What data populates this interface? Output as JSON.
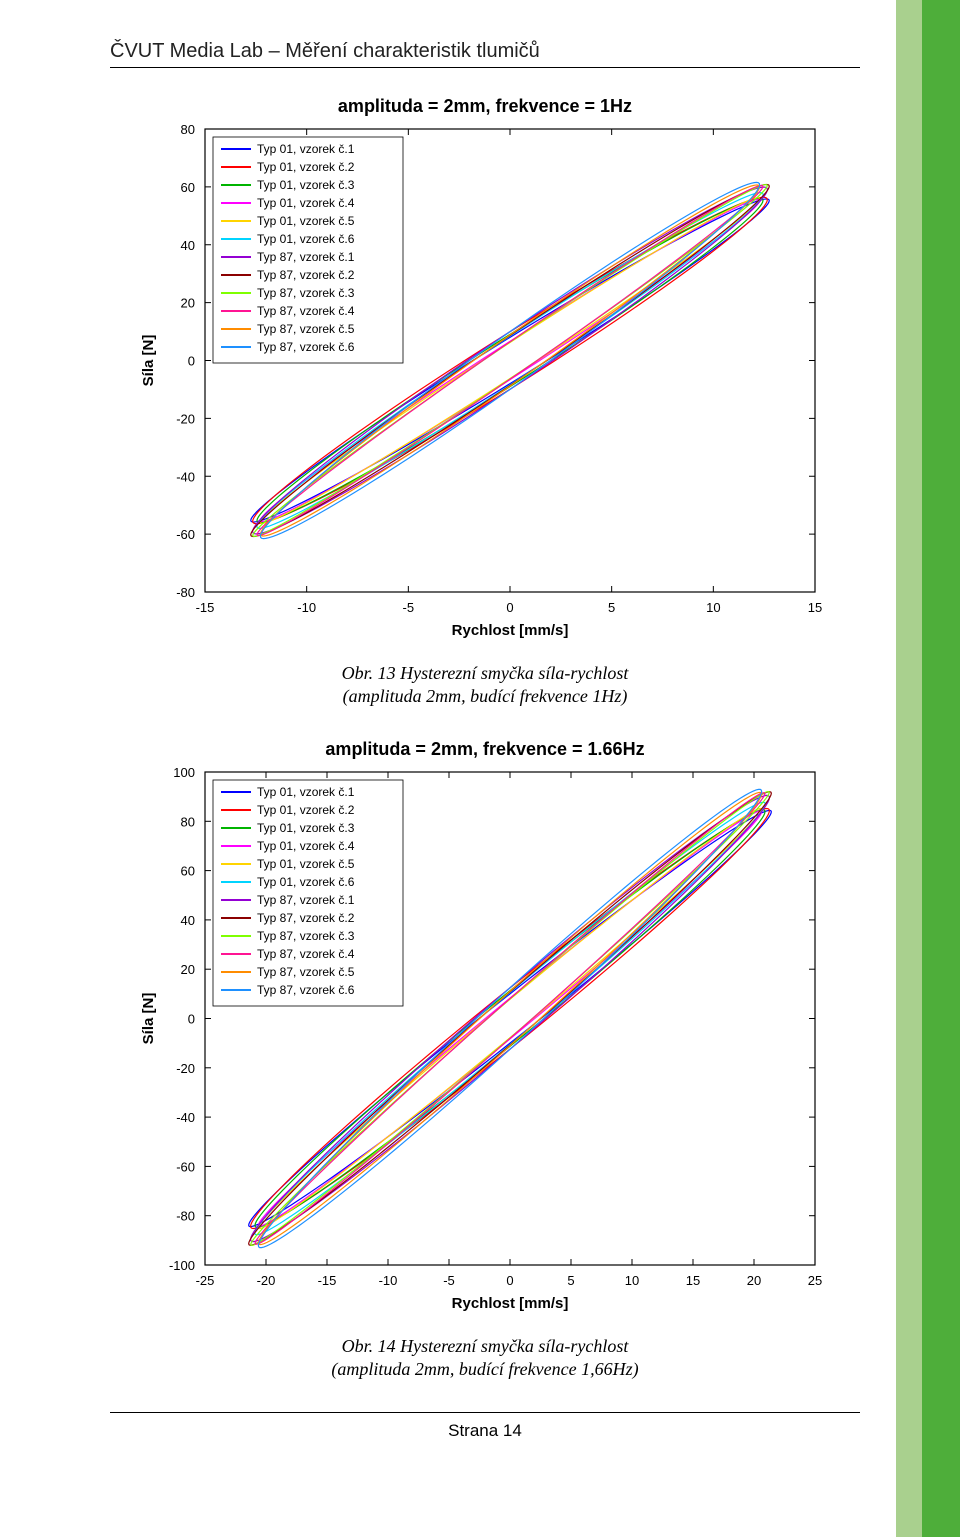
{
  "header": {
    "title": "ČVUT Media Lab – Měření charakteristik tlumičů"
  },
  "footer": {
    "text": "Strana 14"
  },
  "colors": {
    "sidebar_outer": "#4eae3a",
    "sidebar_inner": "#a9d08e",
    "plot_border": "#000000",
    "grid": "#b0b0b0",
    "background": "#ffffff"
  },
  "legend_series": [
    {
      "label": "Typ 01, vzorek č.1",
      "color": "#0000ff"
    },
    {
      "label": "Typ 01, vzorek č.2",
      "color": "#ff0000"
    },
    {
      "label": "Typ 01, vzorek č.3",
      "color": "#00b400"
    },
    {
      "label": "Typ 01, vzorek č.4",
      "color": "#ff00ff"
    },
    {
      "label": "Typ 01, vzorek č.5",
      "color": "#ffd400"
    },
    {
      "label": "Typ 01, vzorek č.6",
      "color": "#00d4ff"
    },
    {
      "label": "Typ 87, vzorek č.1",
      "color": "#9400d3"
    },
    {
      "label": "Typ 87, vzorek č.2",
      "color": "#8b0000"
    },
    {
      "label": "Typ 87, vzorek č.3",
      "color": "#7fff00"
    },
    {
      "label": "Typ 87, vzorek č.4",
      "color": "#ff1493"
    },
    {
      "label": "Typ 87, vzorek č.5",
      "color": "#ff8c00"
    },
    {
      "label": "Typ 87, vzorek č.6",
      "color": "#1e90ff"
    }
  ],
  "chart1": {
    "type": "line",
    "title": "amplituda = 2mm, frekvence = 1Hz",
    "xlabel": "Rychlost [mm/s]",
    "ylabel": "Síla [N]",
    "xlim": [
      -15,
      15
    ],
    "ylim": [
      -80,
      80
    ],
    "xticks": [
      -15,
      -10,
      -5,
      0,
      5,
      10,
      15
    ],
    "yticks": [
      -80,
      -60,
      -40,
      -20,
      0,
      20,
      40,
      60,
      80
    ],
    "xmax_data": 12.5,
    "ymax_data": 58,
    "loop_openness": 8,
    "line_width": 1.2,
    "caption": "Obr. 13 Hysterezní smyčka síla-rychlost\n(amplituda 2mm, budící frekvence 1Hz)"
  },
  "chart2": {
    "type": "line",
    "title": "amplituda = 2mm, frekvence = 1.66Hz",
    "xlabel": "Rychlost [mm/s]",
    "ylabel": "Síla [N]",
    "xlim": [
      -25,
      25
    ],
    "ylim": [
      -100,
      100
    ],
    "xticks": [
      -25,
      -20,
      -15,
      -10,
      -5,
      0,
      5,
      10,
      15,
      20,
      25
    ],
    "yticks": [
      -100,
      -80,
      -60,
      -40,
      -20,
      0,
      20,
      40,
      60,
      80,
      100
    ],
    "xmax_data": 21,
    "ymax_data": 88,
    "loop_openness": 10,
    "line_width": 1.2,
    "caption": "Obr. 14 Hysterezní smyčka síla-rychlost\n(amplituda 2mm, budící frekvence 1,66Hz)"
  }
}
